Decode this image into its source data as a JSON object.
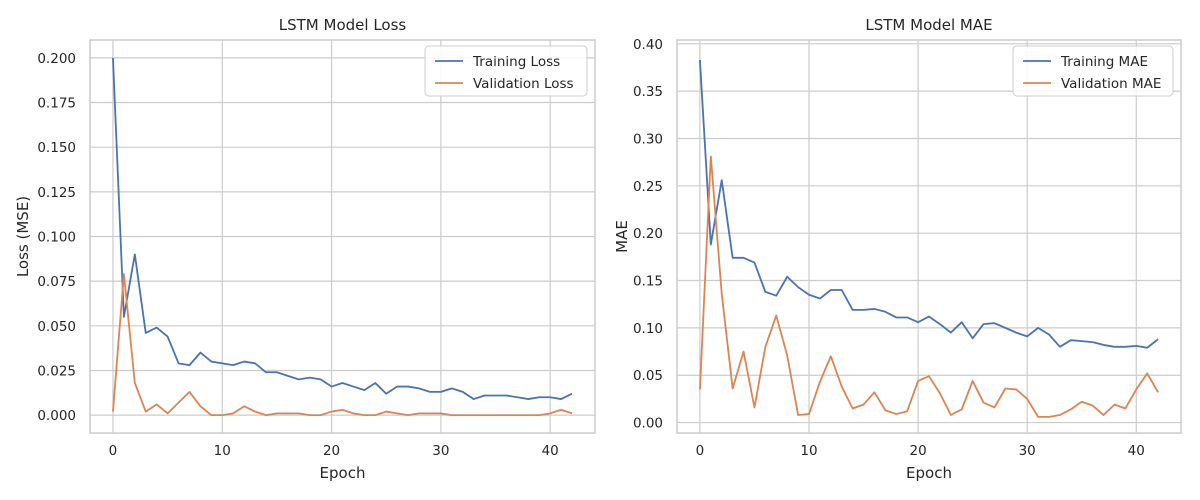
{
  "chart_data": [
    {
      "type": "line",
      "title": "LSTM Model Loss",
      "xlabel": "Epoch",
      "ylabel": "Loss (MSE)",
      "xlim": [
        -2.1,
        44.1
      ],
      "ylim": [
        -0.01,
        0.21
      ],
      "xticks": [
        0,
        10,
        20,
        30,
        40
      ],
      "xtick_labels": [
        "0",
        "10",
        "20",
        "30",
        "40"
      ],
      "yticks": [
        0.0,
        0.025,
        0.05,
        0.075,
        0.1,
        0.125,
        0.15,
        0.175,
        0.2
      ],
      "ytick_labels": [
        "0.000",
        "0.025",
        "0.050",
        "0.075",
        "0.100",
        "0.125",
        "0.150",
        "0.175",
        "0.200"
      ],
      "grid": true,
      "legend": "top-right",
      "x": [
        0,
        1,
        2,
        3,
        4,
        5,
        6,
        7,
        8,
        9,
        10,
        11,
        12,
        13,
        14,
        15,
        16,
        17,
        18,
        19,
        20,
        21,
        22,
        23,
        24,
        25,
        26,
        27,
        28,
        29,
        30,
        31,
        32,
        33,
        34,
        35,
        36,
        37,
        38,
        39,
        40,
        41,
        42
      ],
      "series": [
        {
          "name": "Training Loss",
          "color": "#4c72b0",
          "values": [
            0.2,
            0.055,
            0.09,
            0.046,
            0.049,
            0.044,
            0.029,
            0.028,
            0.035,
            0.03,
            0.029,
            0.028,
            0.03,
            0.029,
            0.024,
            0.024,
            0.022,
            0.02,
            0.021,
            0.02,
            0.016,
            0.018,
            0.016,
            0.014,
            0.018,
            0.012,
            0.016,
            0.016,
            0.015,
            0.013,
            0.013,
            0.015,
            0.013,
            0.009,
            0.011,
            0.011,
            0.011,
            0.01,
            0.009,
            0.01,
            0.01,
            0.009,
            0.012
          ]
        },
        {
          "name": "Validation Loss",
          "color": "#dd8452",
          "values": [
            0.002,
            0.079,
            0.018,
            0.002,
            0.006,
            0.001,
            0.007,
            0.013,
            0.005,
            0.0,
            0.0,
            0.001,
            0.005,
            0.002,
            0.0,
            0.001,
            0.001,
            0.001,
            0.0,
            0.0,
            0.002,
            0.003,
            0.001,
            0.0,
            0.0,
            0.002,
            0.001,
            0.0,
            0.001,
            0.001,
            0.001,
            0.0,
            0.0,
            0.0,
            0.0,
            0.0,
            0.0,
            0.0,
            0.0,
            0.0,
            0.001,
            0.003,
            0.001
          ]
        }
      ]
    },
    {
      "type": "line",
      "title": "LSTM Model MAE",
      "xlabel": "Epoch",
      "ylabel": "MAE",
      "xlim": [
        -2.1,
        44.1
      ],
      "ylim": [
        -0.011,
        0.404
      ],
      "xticks": [
        0,
        10,
        20,
        30,
        40
      ],
      "xtick_labels": [
        "0",
        "10",
        "20",
        "30",
        "40"
      ],
      "yticks": [
        0.0,
        0.05,
        0.1,
        0.15,
        0.2,
        0.25,
        0.3,
        0.35,
        0.4
      ],
      "ytick_labels": [
        "0.00",
        "0.05",
        "0.10",
        "0.15",
        "0.20",
        "0.25",
        "0.30",
        "0.35",
        "0.40"
      ],
      "grid": true,
      "legend": "top-right",
      "x": [
        0,
        1,
        2,
        3,
        4,
        5,
        6,
        7,
        8,
        9,
        10,
        11,
        12,
        13,
        14,
        15,
        16,
        17,
        18,
        19,
        20,
        21,
        22,
        23,
        24,
        25,
        26,
        27,
        28,
        29,
        30,
        31,
        32,
        33,
        34,
        35,
        36,
        37,
        38,
        39,
        40,
        41,
        42
      ],
      "series": [
        {
          "name": "Training MAE",
          "color": "#4c72b0",
          "values": [
            0.383,
            0.188,
            0.256,
            0.174,
            0.174,
            0.169,
            0.138,
            0.134,
            0.154,
            0.143,
            0.135,
            0.131,
            0.14,
            0.14,
            0.119,
            0.119,
            0.12,
            0.117,
            0.111,
            0.111,
            0.106,
            0.112,
            0.104,
            0.095,
            0.106,
            0.089,
            0.104,
            0.105,
            0.1,
            0.095,
            0.091,
            0.1,
            0.093,
            0.08,
            0.087,
            0.086,
            0.085,
            0.082,
            0.08,
            0.08,
            0.081,
            0.079,
            0.088
          ]
        },
        {
          "name": "Validation MAE",
          "color": "#dd8452",
          "values": [
            0.035,
            0.281,
            0.136,
            0.036,
            0.075,
            0.016,
            0.08,
            0.113,
            0.071,
            0.008,
            0.009,
            0.043,
            0.07,
            0.038,
            0.015,
            0.019,
            0.032,
            0.013,
            0.009,
            0.012,
            0.044,
            0.049,
            0.031,
            0.008,
            0.014,
            0.044,
            0.021,
            0.016,
            0.036,
            0.035,
            0.025,
            0.006,
            0.006,
            0.008,
            0.014,
            0.022,
            0.018,
            0.008,
            0.019,
            0.015,
            0.035,
            0.052,
            0.032
          ]
        }
      ]
    }
  ]
}
